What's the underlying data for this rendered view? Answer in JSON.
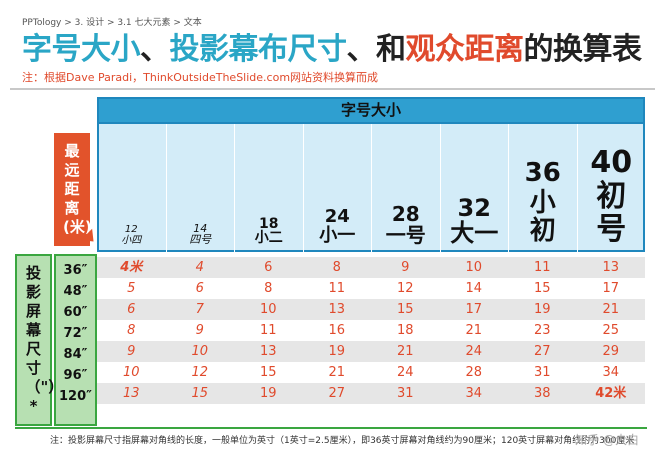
{
  "breadcrumb": "PPTology  > 3. 设计  > 3.1 七大元素  > 文本",
  "title": {
    "part1": "字号大小",
    "sep1": "、",
    "part2": "投影幕布尺寸",
    "sep2": "、",
    "part3": "和",
    "part4": "观众距离",
    "part5": "的换算表"
  },
  "subtitle": "注：根据Dave Paradi，ThinkOutsideTheSlide.com网站资料换算而成",
  "table": {
    "header_band": "字号大小",
    "distance_label": "最远距离(米)",
    "screen_label": "投影屏幕尺寸（\"）*",
    "columns": [
      {
        "l1": "12",
        "l2": "小四"
      },
      {
        "l1": "14",
        "l2": "四号"
      },
      {
        "l1": "18",
        "l2": "小二"
      },
      {
        "l1": "24",
        "l2": "小一"
      },
      {
        "l1": "28",
        "l2": "一号"
      },
      {
        "l1": "32",
        "l2": "大一"
      },
      {
        "l1": "36",
        "l2": "小初"
      },
      {
        "l1": "40",
        "l2": "初号"
      }
    ],
    "rows": [
      {
        "size": "36″",
        "values": [
          "4米",
          "4",
          "6",
          "8",
          "9",
          "10",
          "11",
          "13"
        ]
      },
      {
        "size": "48″",
        "values": [
          "5",
          "6",
          "8",
          "11",
          "12",
          "14",
          "15",
          "17"
        ]
      },
      {
        "size": "60″",
        "values": [
          "6",
          "7",
          "10",
          "13",
          "15",
          "17",
          "19",
          "21"
        ]
      },
      {
        "size": "72″",
        "values": [
          "8",
          "9",
          "11",
          "16",
          "18",
          "21",
          "23",
          "25"
        ]
      },
      {
        "size": "84″",
        "values": [
          "9",
          "10",
          "13",
          "19",
          "21",
          "24",
          "27",
          "29"
        ]
      },
      {
        "size": "96″",
        "values": [
          "10",
          "12",
          "15",
          "21",
          "24",
          "28",
          "31",
          "34"
        ]
      },
      {
        "size": "120″",
        "values": [
          "13",
          "15",
          "19",
          "27",
          "31",
          "34",
          "38",
          "42米"
        ]
      }
    ]
  },
  "footnote": "注：投影屏幕尺寸指屏幕对角线的长度，一般单位为英寸（1英寸=2.5厘米），即36英寸屏幕对角线约为90厘米；120英寸屏幕对角线约为300厘米",
  "watermark": "知乎 @大白"
}
